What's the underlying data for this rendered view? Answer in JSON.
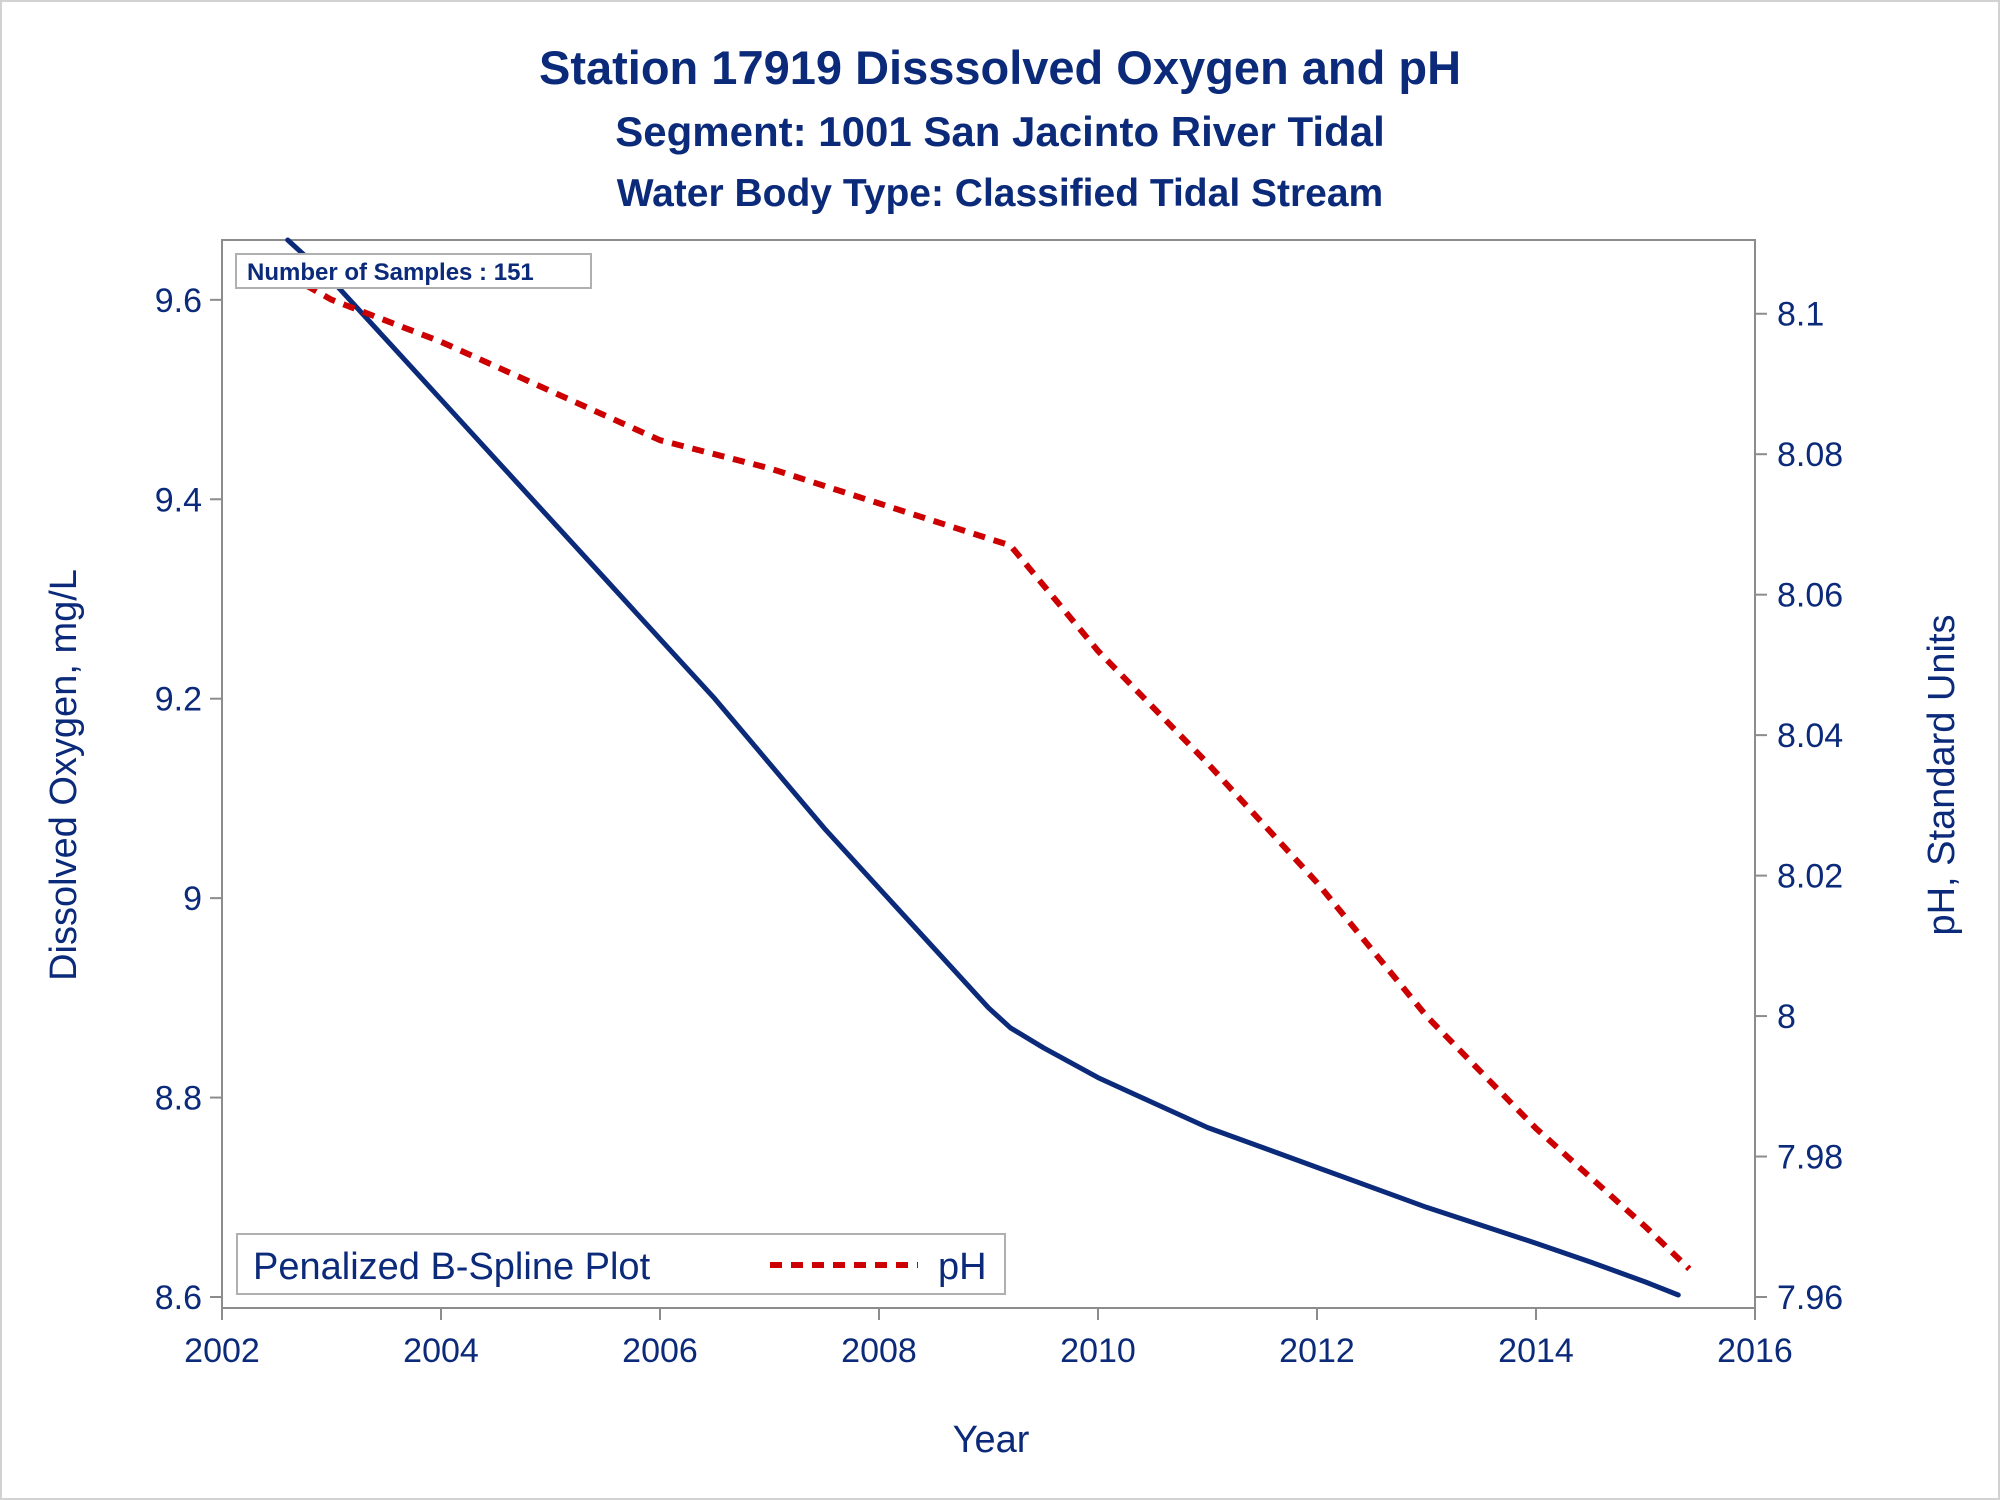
{
  "chart_data": {
    "type": "line",
    "title": "Station 17919   Disssolved Oxygen and pH",
    "subtitle": "Segment: 1001  San Jacinto River Tidal",
    "subtitle2": "Water Body Type: Classified Tidal Stream",
    "xlabel": "Year",
    "ylabel": "Dissolved Oxygen, mg/L",
    "y2label": "pH, Standard Units",
    "xlim": [
      2002,
      2016
    ],
    "ylim": [
      8.6,
      9.66
    ],
    "y2lim": [
      7.96,
      8.1105
    ],
    "xticks": [
      "2002",
      "2004",
      "2006",
      "2008",
      "2010",
      "2012",
      "2014",
      "2016"
    ],
    "yticks": [
      "8.6",
      "8.8",
      "9",
      "9.2",
      "9.4",
      "9.6"
    ],
    "y2ticks": [
      "7.96",
      "7.98",
      "8",
      "8.02",
      "8.04",
      "8.06",
      "8.08",
      "8.1"
    ],
    "annotation": "Number of Samples : 151",
    "legend_title": "Penalized B-Spline Plot",
    "legend_position": "bottom-left",
    "series": [
      {
        "name": "",
        "axis": "left",
        "color": "#0b2a7a",
        "style": "solid",
        "x": [
          2002.6,
          2003.0,
          2003.5,
          2004.0,
          2004.5,
          2005.0,
          2005.5,
          2006.0,
          2006.5,
          2007.0,
          2007.5,
          2008.0,
          2008.5,
          2009.0,
          2009.2,
          2009.5,
          2010.0,
          2010.5,
          2011.0,
          2011.5,
          2012.0,
          2012.5,
          2013.0,
          2013.5,
          2014.0,
          2014.5,
          2015.0,
          2015.3
        ],
        "values": [
          9.66,
          9.62,
          9.56,
          9.5,
          9.44,
          9.38,
          9.32,
          9.26,
          9.2,
          9.135,
          9.07,
          9.01,
          8.95,
          8.89,
          8.87,
          8.85,
          8.82,
          8.795,
          8.77,
          8.75,
          8.73,
          8.71,
          8.69,
          8.672,
          8.654,
          8.635,
          8.615,
          8.602
        ]
      },
      {
        "name": "pH",
        "axis": "right",
        "color": "#cc0000",
        "style": "dashed",
        "x": [
          2002.6,
          2003.0,
          2004.0,
          2005.0,
          2006.0,
          2007.0,
          2008.0,
          2009.0,
          2009.2,
          2010.0,
          2011.0,
          2012.0,
          2013.0,
          2014.0,
          2015.0,
          2015.4
        ],
        "values": [
          8.1055,
          8.102,
          8.096,
          8.089,
          8.082,
          8.078,
          8.073,
          8.068,
          8.067,
          8.052,
          8.036,
          8.019,
          8.0,
          7.984,
          7.97,
          7.964
        ]
      }
    ]
  }
}
